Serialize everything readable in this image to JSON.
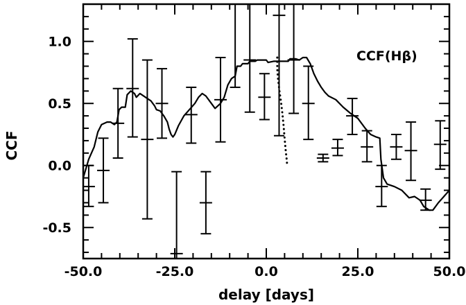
{
  "chart_data": {
    "type": "scatter",
    "xlabel": "delay [days]",
    "ylabel": "CCF",
    "annotation": "CCF(Hβ)",
    "xlim": [
      -50,
      50
    ],
    "ylim": [
      -0.75,
      1.3
    ],
    "xticks": [
      -50,
      -25,
      0,
      25,
      50
    ],
    "xtick_labels": [
      "-50.0",
      "-25.0",
      "0.0",
      "25.0",
      "50.0"
    ],
    "yticks": [
      -0.5,
      0.0,
      0.5,
      1.0
    ],
    "ytick_labels": [
      "-0.5",
      "0.0",
      "0.5",
      "1.0"
    ],
    "grid": false,
    "series": [
      {
        "style": "errorbars",
        "points": [
          {
            "x": -48.5,
            "y": -0.17,
            "lo": -0.33,
            "hi": 0.0
          },
          {
            "x": -44.5,
            "y": -0.04,
            "lo": -0.3,
            "hi": 0.22
          },
          {
            "x": -40.5,
            "y": 0.34,
            "lo": 0.06,
            "hi": 0.62
          },
          {
            "x": -36.5,
            "y": 0.62,
            "lo": 0.23,
            "hi": 1.02
          },
          {
            "x": -32.5,
            "y": 0.21,
            "lo": -0.43,
            "hi": 0.85
          },
          {
            "x": -28.5,
            "y": 0.5,
            "lo": 0.22,
            "hi": 0.78
          },
          {
            "x": -24.5,
            "y": -0.71,
            "lo": -0.75,
            "hi": -0.05
          },
          {
            "x": -20.5,
            "y": 0.41,
            "lo": 0.18,
            "hi": 0.63
          },
          {
            "x": -16.5,
            "y": -0.3,
            "lo": -0.55,
            "hi": -0.05
          },
          {
            "x": -12.5,
            "y": 0.53,
            "lo": 0.19,
            "hi": 0.87
          },
          {
            "x": -8.5,
            "y": 1.3,
            "lo": 0.63,
            "hi": 1.3
          },
          {
            "x": -4.5,
            "y": 0.85,
            "lo": 0.43,
            "hi": 1.3
          },
          {
            "x": -0.5,
            "y": 0.55,
            "lo": 0.37,
            "hi": 0.74
          },
          {
            "x": 3.5,
            "y": 1.21,
            "lo": 0.24,
            "hi": 1.3
          },
          {
            "x": 7.5,
            "y": 0.85,
            "lo": 0.42,
            "hi": 1.3
          },
          {
            "x": 11.5,
            "y": 0.5,
            "lo": 0.21,
            "hi": 0.8
          },
          {
            "x": 15.5,
            "y": 0.06,
            "lo": 0.03,
            "hi": 0.09
          },
          {
            "x": 19.5,
            "y": 0.14,
            "lo": 0.08,
            "hi": 0.21
          },
          {
            "x": 23.5,
            "y": 0.4,
            "lo": 0.25,
            "hi": 0.54
          },
          {
            "x": 27.5,
            "y": 0.15,
            "lo": 0.03,
            "hi": 0.28
          },
          {
            "x": 31.5,
            "y": -0.17,
            "lo": -0.33,
            "hi": 0.0
          },
          {
            "x": 35.5,
            "y": 0.15,
            "lo": 0.05,
            "hi": 0.25
          },
          {
            "x": 39.5,
            "y": 0.12,
            "lo": -0.12,
            "hi": 0.35
          },
          {
            "x": 43.5,
            "y": -0.28,
            "lo": -0.36,
            "hi": -0.19
          },
          {
            "x": 47.5,
            "y": 0.17,
            "lo": -0.03,
            "hi": 0.36
          }
        ]
      },
      {
        "style": "solid",
        "points": [
          [
            -50,
            -0.1
          ],
          [
            -48.5,
            0.05
          ],
          [
            -47,
            0.15
          ],
          [
            -46,
            0.27
          ],
          [
            -45,
            0.33
          ],
          [
            -43.5,
            0.35
          ],
          [
            -42.5,
            0.35
          ],
          [
            -41.5,
            0.33
          ],
          [
            -40.8,
            0.35
          ],
          [
            -40.2,
            0.45
          ],
          [
            -39.5,
            0.47
          ],
          [
            -38.5,
            0.47
          ],
          [
            -38,
            0.57
          ],
          [
            -37,
            0.6
          ],
          [
            -36,
            0.58
          ],
          [
            -35.5,
            0.55
          ],
          [
            -34.5,
            0.58
          ],
          [
            -34,
            0.57
          ],
          [
            -33,
            0.55
          ],
          [
            -32,
            0.53
          ],
          [
            -31.5,
            0.52
          ],
          [
            -30.5,
            0.48
          ],
          [
            -30,
            0.45
          ],
          [
            -29,
            0.44
          ],
          [
            -28,
            0.4
          ],
          [
            -27,
            0.35
          ],
          [
            -26.5,
            0.29
          ],
          [
            -26,
            0.25
          ],
          [
            -25.5,
            0.23
          ],
          [
            -25,
            0.25
          ],
          [
            -24,
            0.32
          ],
          [
            -22.5,
            0.4
          ],
          [
            -21,
            0.45
          ],
          [
            -19.5,
            0.5
          ],
          [
            -18.5,
            0.55
          ],
          [
            -17.5,
            0.58
          ],
          [
            -16.5,
            0.56
          ],
          [
            -15,
            0.5
          ],
          [
            -14,
            0.46
          ],
          [
            -12.5,
            0.5
          ],
          [
            -11.5,
            0.55
          ],
          [
            -10.5,
            0.65
          ],
          [
            -9.5,
            0.7
          ],
          [
            -8.5,
            0.72
          ],
          [
            -8,
            0.8
          ],
          [
            -7,
            0.8
          ],
          [
            -6.5,
            0.82
          ],
          [
            -5,
            0.82
          ],
          [
            -4.5,
            0.84
          ],
          [
            -3,
            0.84
          ],
          [
            -2.5,
            0.85
          ],
          [
            0,
            0.85
          ],
          [
            0.5,
            0.83
          ],
          [
            2,
            0.84
          ],
          [
            4,
            0.84
          ],
          [
            6,
            0.84
          ],
          [
            6.5,
            0.86
          ],
          [
            8,
            0.86
          ],
          [
            9,
            0.85
          ],
          [
            10,
            0.87
          ],
          [
            11,
            0.87
          ],
          [
            12,
            0.82
          ],
          [
            13,
            0.74
          ],
          [
            14,
            0.68
          ],
          [
            15,
            0.63
          ],
          [
            16,
            0.59
          ],
          [
            17,
            0.56
          ],
          [
            19,
            0.53
          ],
          [
            21,
            0.47
          ],
          [
            23,
            0.42
          ],
          [
            25,
            0.38
          ],
          [
            27,
            0.3
          ],
          [
            28.5,
            0.25
          ],
          [
            30,
            0.23
          ],
          [
            31,
            0.22
          ],
          [
            31.3,
            0.05
          ],
          [
            32,
            -0.1
          ],
          [
            33,
            -0.15
          ],
          [
            35,
            -0.17
          ],
          [
            37,
            -0.2
          ],
          [
            39,
            -0.26
          ],
          [
            40.5,
            -0.25
          ],
          [
            42,
            -0.28
          ],
          [
            43,
            -0.33
          ],
          [
            44.5,
            -0.36
          ],
          [
            45.5,
            -0.36
          ],
          [
            47,
            -0.3
          ],
          [
            48.5,
            -0.25
          ],
          [
            50,
            -0.2
          ]
        ]
      },
      {
        "style": "dotted",
        "points": [
          [
            3.0,
            0.87
          ],
          [
            3.0,
            0.78
          ],
          [
            3.2,
            0.7
          ],
          [
            3.6,
            0.6
          ],
          [
            4.0,
            0.52
          ],
          [
            4.4,
            0.42
          ],
          [
            4.7,
            0.33
          ],
          [
            5.0,
            0.22
          ],
          [
            5.3,
            0.12
          ],
          [
            5.6,
            0.04
          ],
          [
            5.7,
            0.0
          ]
        ]
      }
    ]
  }
}
